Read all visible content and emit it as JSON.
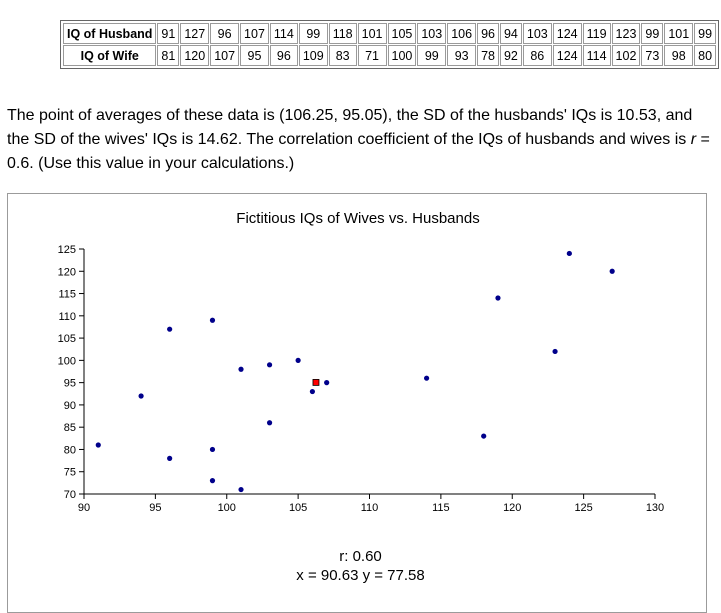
{
  "table": {
    "husband_label": "IQ of Husband",
    "wife_label": "IQ of Wife",
    "husband": [
      91,
      127,
      96,
      107,
      114,
      99,
      118,
      101,
      105,
      103,
      106,
      96,
      94,
      103,
      124,
      119,
      123,
      99,
      101,
      99
    ],
    "wife": [
      81,
      120,
      107,
      95,
      96,
      109,
      83,
      71,
      100,
      99,
      93,
      78,
      92,
      86,
      124,
      114,
      102,
      73,
      98,
      80
    ]
  },
  "description": {
    "part1": "The point of averages of these data is (106.25, 95.05), the SD of the husbands' IQs is 10.53, and the SD of the wives' IQs is 14.62. The correlation coefficient of the IQs of husbands and wives is ",
    "r_symbol": "r",
    "part2": " = 0.6. (Use this value in your calculations.)"
  },
  "readout": {
    "r_text": "r: 0.60",
    "xy_text": "x = 90.63 y = 77.58"
  },
  "colors": {
    "point": "#00008b",
    "average_point": "#ff0000",
    "axis": "#000000"
  },
  "chart_data": {
    "type": "scatter",
    "title": "Fictitious IQs of Wives vs. Husbands",
    "xlabel": "",
    "ylabel": "",
    "xlim": [
      90,
      130
    ],
    "ylim": [
      70,
      125
    ],
    "xticks": [
      90,
      95,
      100,
      105,
      110,
      115,
      120,
      125,
      130
    ],
    "yticks": [
      70,
      75,
      80,
      85,
      90,
      95,
      100,
      105,
      110,
      115,
      120,
      125
    ],
    "points": [
      {
        "x": 91,
        "y": 81
      },
      {
        "x": 127,
        "y": 120
      },
      {
        "x": 96,
        "y": 107
      },
      {
        "x": 107,
        "y": 95
      },
      {
        "x": 114,
        "y": 96
      },
      {
        "x": 99,
        "y": 109
      },
      {
        "x": 118,
        "y": 83
      },
      {
        "x": 101,
        "y": 71
      },
      {
        "x": 105,
        "y": 100
      },
      {
        "x": 103,
        "y": 99
      },
      {
        "x": 106,
        "y": 93
      },
      {
        "x": 96,
        "y": 78
      },
      {
        "x": 94,
        "y": 92
      },
      {
        "x": 103,
        "y": 86
      },
      {
        "x": 124,
        "y": 124
      },
      {
        "x": 119,
        "y": 114
      },
      {
        "x": 123,
        "y": 102
      },
      {
        "x": 99,
        "y": 73
      },
      {
        "x": 101,
        "y": 98
      },
      {
        "x": 99,
        "y": 80
      }
    ],
    "average_point": {
      "x": 106.25,
      "y": 95.05
    }
  }
}
